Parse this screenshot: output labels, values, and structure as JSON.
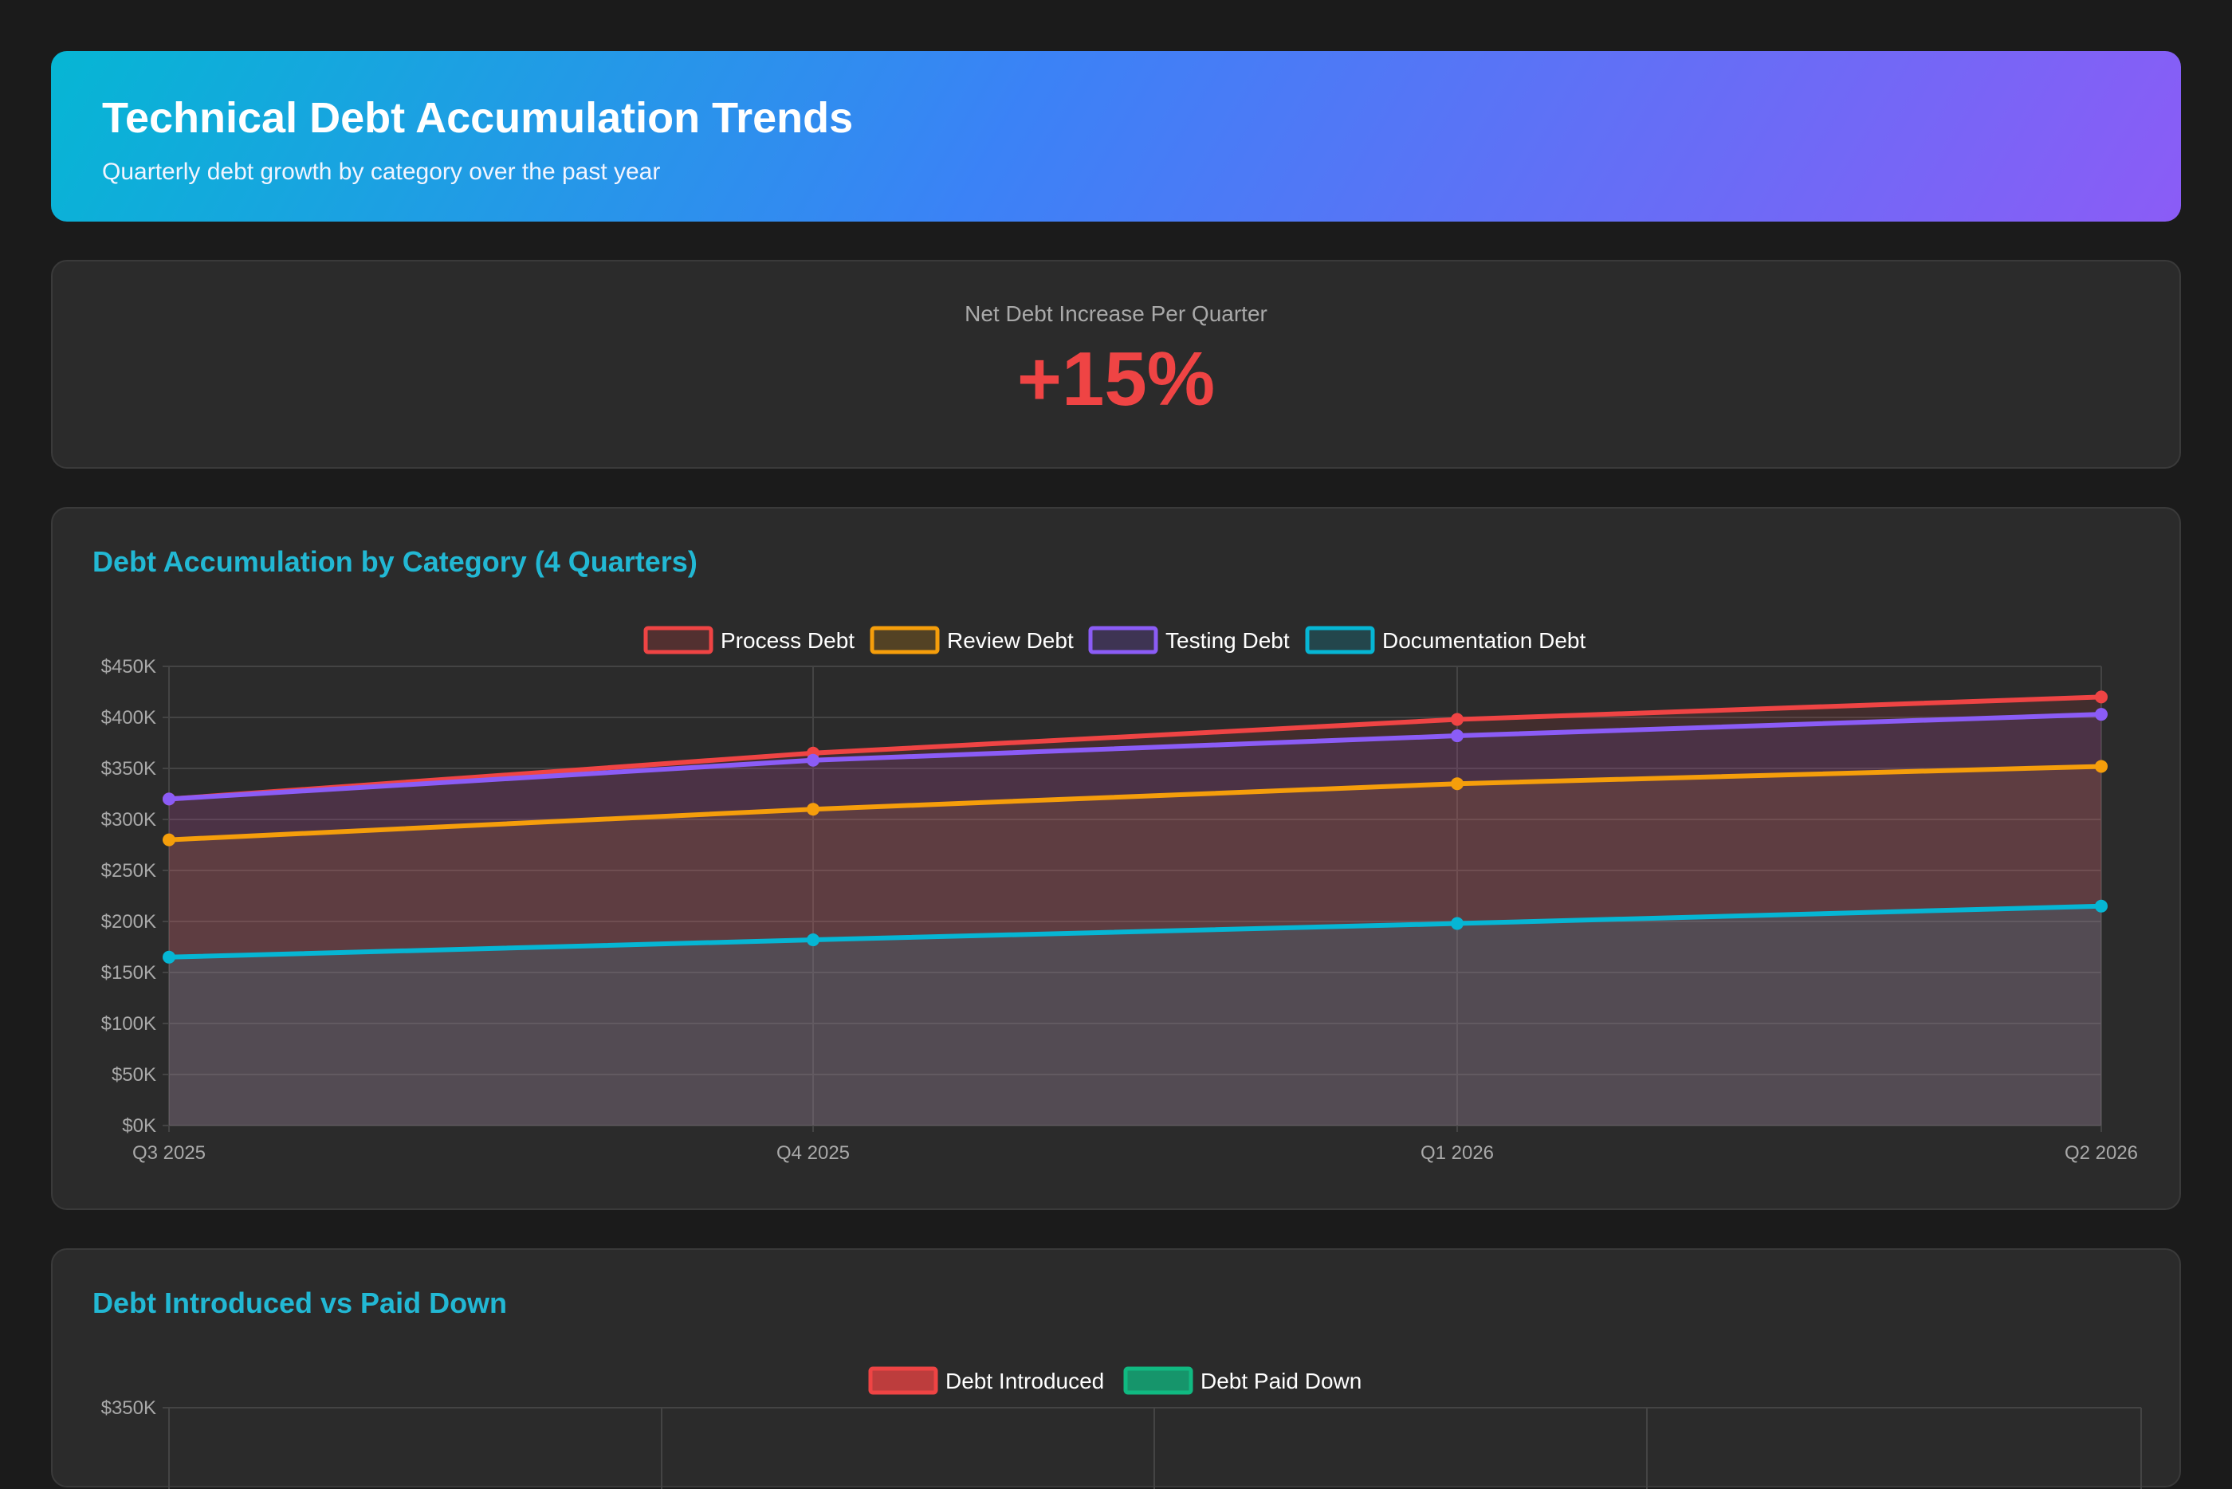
{
  "header": {
    "title": "Technical Debt Accumulation Trends",
    "subtitle": "Quarterly debt growth by category over the past year"
  },
  "kpi": {
    "label": "Net Debt Increase Per Quarter",
    "value": "+15%",
    "color": "#ef4444"
  },
  "colors": {
    "accent_title": "#22b8d4",
    "process": "#ef4444",
    "review": "#f59e0b",
    "testing": "#8b5cf6",
    "documentation": "#06b6d4",
    "introduced": "#ef4444",
    "paid_down": "#10b981"
  },
  "chart_data": [
    {
      "type": "area",
      "title": "Debt Accumulation by Category (4 Quarters)",
      "categories": [
        "Q3 2025",
        "Q4 2025",
        "Q1 2026",
        "Q2 2026"
      ],
      "ylim": [
        0,
        450000
      ],
      "yticks": [
        "$0K",
        "$50K",
        "$100K",
        "$150K",
        "$200K",
        "$250K",
        "$300K",
        "$350K",
        "$400K",
        "$450K"
      ],
      "ytick_values": [
        0,
        50000,
        100000,
        150000,
        200000,
        250000,
        300000,
        350000,
        400000,
        450000
      ],
      "legend_position": "top",
      "grid": true,
      "series": [
        {
          "name": "Process Debt",
          "color": "#ef4444",
          "values": [
            320000,
            365000,
            398000,
            420000
          ]
        },
        {
          "name": "Review Debt",
          "color": "#f59e0b",
          "values": [
            280000,
            310000,
            335000,
            352000
          ]
        },
        {
          "name": "Testing Debt",
          "color": "#8b5cf6",
          "values": [
            320000,
            358000,
            382000,
            403000
          ]
        },
        {
          "name": "Documentation Debt",
          "color": "#06b6d4",
          "values": [
            165000,
            182000,
            198000,
            215000
          ]
        }
      ]
    },
    {
      "type": "bar",
      "title": "Debt Introduced vs Paid Down",
      "legend_position": "top",
      "yticks_visible": [
        "$350K"
      ],
      "series": [
        {
          "name": "Debt Introduced",
          "color": "#ef4444"
        },
        {
          "name": "Debt Paid Down",
          "color": "#10b981"
        }
      ]
    }
  ]
}
